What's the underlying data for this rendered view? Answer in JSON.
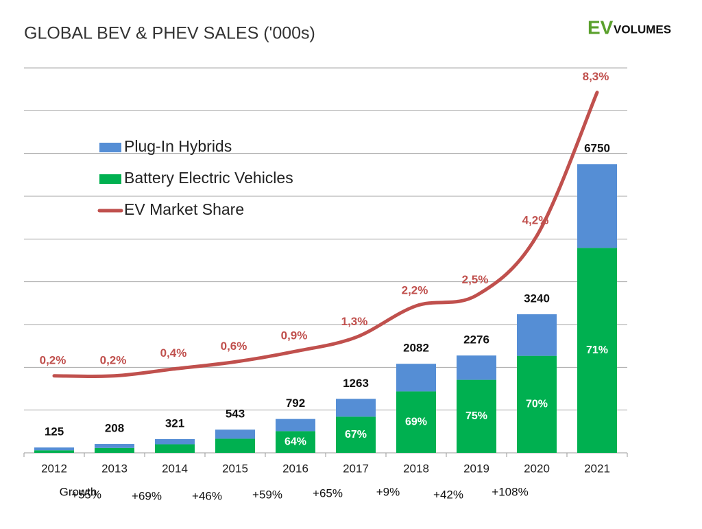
{
  "logo": {
    "ev": "EV",
    "volumes": "VOLUMES"
  },
  "chart_data": {
    "type": "bar",
    "stacked": true,
    "title": "GLOBAL BEV & PHEV SALES ('000s)",
    "categories": [
      "2012",
      "2013",
      "2014",
      "2015",
      "2016",
      "2017",
      "2018",
      "2019",
      "2020",
      "2021"
    ],
    "series": [
      {
        "name": "Plug-In Hybrids",
        "color": "#558ed5",
        "values": [
          65,
          93,
          121,
          213,
          285,
          417,
          645,
          569,
          972,
          1957
        ]
      },
      {
        "name": "Battery Electric Vehicles",
        "color": "#00b050",
        "values": [
          60,
          115,
          200,
          330,
          507,
          846,
          1437,
          1707,
          2268,
          4793
        ]
      },
      {
        "name": "EV Market Share",
        "type": "line",
        "axis": "y2",
        "color": "#c0504d",
        "values": [
          0.2,
          0.2,
          0.4,
          0.6,
          0.9,
          1.3,
          2.2,
          2.5,
          4.2,
          8.3
        ],
        "value_labels": [
          "0,2%",
          "0,2%",
          "0,4%",
          "0,6%",
          "0,9%",
          "1,3%",
          "2,2%",
          "2,5%",
          "4,2%",
          "8,3%"
        ]
      }
    ],
    "totals": [
      125,
      208,
      321,
      543,
      792,
      1263,
      2082,
      2276,
      3240,
      6750
    ],
    "bev_share": {
      "values": [
        null,
        null,
        null,
        null,
        64,
        67,
        69,
        75,
        70,
        71
      ],
      "value_labels": [
        null,
        null,
        null,
        null,
        "64%",
        "67%",
        "69%",
        "75%",
        "70%",
        "71%"
      ]
    },
    "growth": {
      "label": "Growth",
      "values": [
        55,
        69,
        46,
        59,
        65,
        9,
        42,
        108
      ],
      "value_labels": [
        "+55%",
        "+69%",
        "+46%",
        "+59%",
        "+65%",
        "+9%",
        "+42%",
        "+108%"
      ]
    },
    "ylim": [
      0,
      9000
    ],
    "yticks": [
      0,
      1000,
      2000,
      3000,
      4000,
      5000,
      6000,
      7000,
      8000,
      9000
    ],
    "y2lim": [
      -2,
      9
    ],
    "grid": true
  }
}
